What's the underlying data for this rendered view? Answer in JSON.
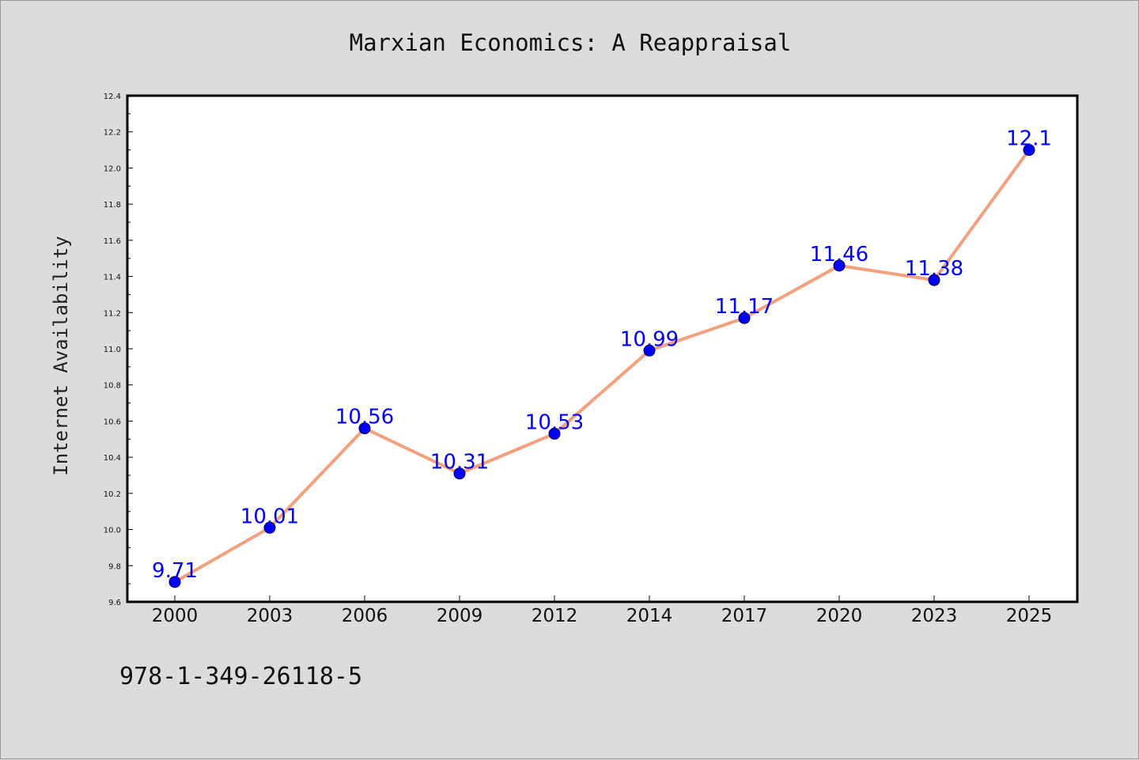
{
  "chart_data": {
    "type": "line",
    "title": "Marxian Economics: A Reappraisal",
    "xlabel": "",
    "ylabel": "Internet Availability",
    "categories": [
      "2000",
      "2003",
      "2006",
      "2009",
      "2012",
      "2014",
      "2017",
      "2020",
      "2023",
      "2025"
    ],
    "series": [
      {
        "values": [
          9.71,
          10.01,
          10.56,
          10.31,
          10.53,
          10.99,
          11.17,
          11.46,
          11.38,
          12.1
        ],
        "labels": [
          "9.71",
          "10.01",
          "10.56",
          "10.31",
          "10.53",
          "10.99",
          "11.17",
          "11.46",
          "11.38",
          "12.1"
        ],
        "line_color": "#f4a07e",
        "marker_color": "#0000ff"
      }
    ],
    "ylim": [
      9.6,
      12.4
    ],
    "yticks": [
      "9.6",
      "9.8",
      "10.0",
      "10.2",
      "10.4",
      "10.6",
      "10.8",
      "11.0",
      "11.2",
      "11.4",
      "11.6",
      "11.8",
      "12.0",
      "12.2",
      "12.4"
    ],
    "grid": false,
    "legend": "none"
  },
  "footer": {
    "isbn": "978-1-349-26118-5"
  },
  "colors": {
    "background": "#dcdcdc",
    "plot_background": "#ffffff",
    "axis": "#000000",
    "line": "#f4a07e",
    "marker": "#0000ff",
    "data_label": "#0000ff"
  }
}
